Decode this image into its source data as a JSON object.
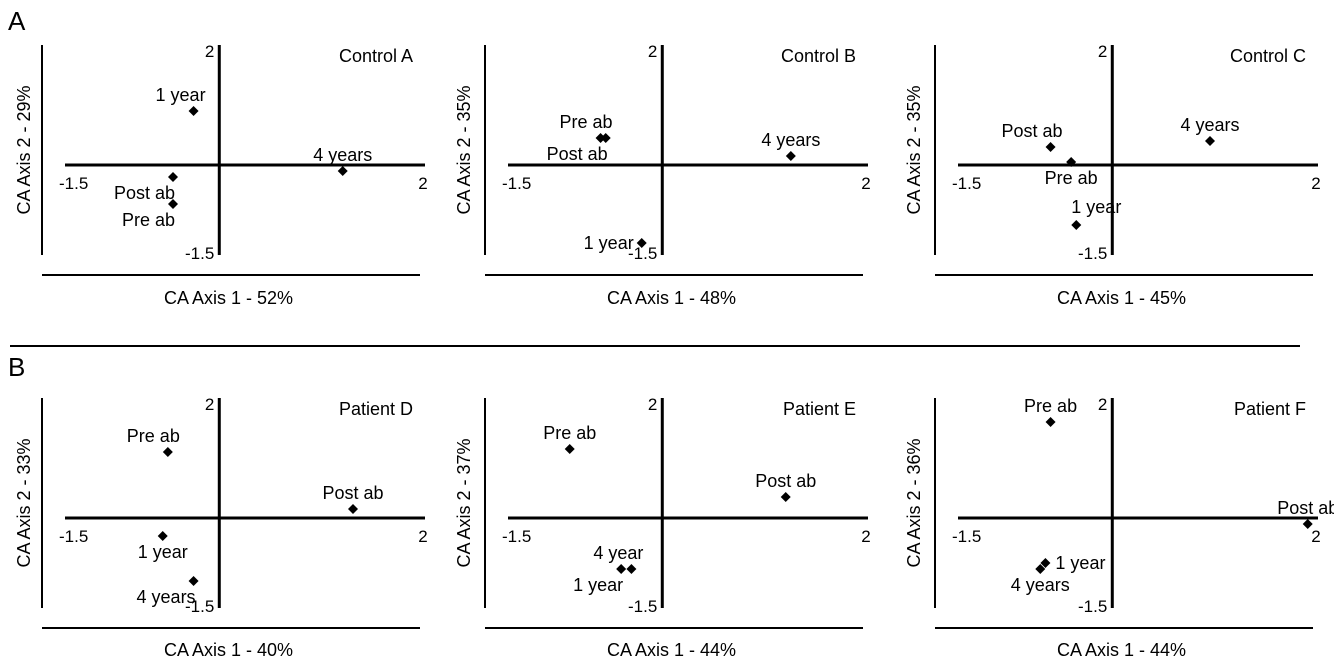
{
  "panels": [
    {
      "letter": "A"
    },
    {
      "letter": "B"
    }
  ],
  "chart_data": [
    {
      "type": "scatter",
      "title": "Control A",
      "xlabel": "CA Axis 1 - 52%",
      "ylabel": "CA Axis 2 - 29%",
      "xlim": [
        -1.5,
        2
      ],
      "ylim": [
        -1.5,
        2
      ],
      "xtick_labels": [
        "-1.5",
        "2"
      ],
      "ytick_labels": [
        "2",
        "-1.5"
      ],
      "points": [
        {
          "label": "1 year",
          "x": -0.25,
          "y": 0.9,
          "label_pos": "above-left"
        },
        {
          "label": "4 years",
          "x": 1.2,
          "y": -0.1,
          "label_pos": "above"
        },
        {
          "label": "Post ab",
          "x": -0.45,
          "y": -0.2,
          "label_pos": "below-left"
        },
        {
          "label": "Pre ab",
          "x": -0.45,
          "y": -0.65,
          "label_pos": "below-left"
        }
      ]
    },
    {
      "type": "scatter",
      "title": "Control B",
      "xlabel": "CA Axis 1 - 48%",
      "ylabel": "CA Axis 2 - 35%",
      "xlim": [
        -1.5,
        2
      ],
      "ylim": [
        -1.5,
        2
      ],
      "xtick_labels": [
        "-1.5",
        "2"
      ],
      "ytick_labels": [
        "2",
        "-1.5"
      ],
      "points": [
        {
          "label": "Pre ab",
          "x": -0.6,
          "y": 0.45,
          "label_pos": "above-left"
        },
        {
          "label": "Post ab",
          "x": -0.55,
          "y": 0.45,
          "label_pos": "below-left"
        },
        {
          "label": "4 years",
          "x": 1.25,
          "y": 0.15,
          "label_pos": "above"
        },
        {
          "label": "1 year",
          "x": -0.2,
          "y": -1.3,
          "label_pos": "left"
        }
      ]
    },
    {
      "type": "scatter",
      "title": "Control C",
      "xlabel": "CA Axis 1 - 45%",
      "ylabel": "CA Axis 2 - 35%",
      "xlim": [
        -1.5,
        2
      ],
      "ylim": [
        -1.5,
        2
      ],
      "xtick_labels": [
        "-1.5",
        "2"
      ],
      "ytick_labels": [
        "2",
        "-1.5"
      ],
      "points": [
        {
          "label": "Post ab",
          "x": -0.6,
          "y": 0.3,
          "label_pos": "above-left"
        },
        {
          "label": "Pre ab",
          "x": -0.4,
          "y": 0.05,
          "label_pos": "below"
        },
        {
          "label": "4 years",
          "x": 0.95,
          "y": 0.4,
          "label_pos": "above"
        },
        {
          "label": "1 year",
          "x": -0.35,
          "y": -1.0,
          "label_pos": "above-right"
        }
      ]
    },
    {
      "type": "scatter",
      "title": "Patient D",
      "xlabel": "CA Axis 1 - 40%",
      "ylabel": "CA Axis 2 - 33%",
      "xlim": [
        -1.5,
        2
      ],
      "ylim": [
        -1.5,
        2
      ],
      "xtick_labels": [
        "-1.5",
        "2"
      ],
      "ytick_labels": [
        "2",
        "-1.5"
      ],
      "points": [
        {
          "label": "Pre ab",
          "x": -0.5,
          "y": 1.1,
          "label_pos": "above-left"
        },
        {
          "label": "Post ab",
          "x": 1.3,
          "y": 0.15,
          "label_pos": "above"
        },
        {
          "label": "1 year",
          "x": -0.55,
          "y": -0.3,
          "label_pos": "below"
        },
        {
          "label": "4 years",
          "x": -0.25,
          "y": -1.05,
          "label_pos": "below-left"
        }
      ]
    },
    {
      "type": "scatter",
      "title": "Patient E",
      "xlabel": "CA Axis 1 - 44%",
      "ylabel": "CA Axis 2 - 37%",
      "xlim": [
        -1.5,
        2
      ],
      "ylim": [
        -1.5,
        2
      ],
      "xtick_labels": [
        "-1.5",
        "2"
      ],
      "ytick_labels": [
        "2",
        "-1.5"
      ],
      "points": [
        {
          "label": "Pre ab",
          "x": -0.9,
          "y": 1.15,
          "label_pos": "above"
        },
        {
          "label": "Post ab",
          "x": 1.2,
          "y": 0.35,
          "label_pos": "above"
        },
        {
          "label": "4 year",
          "x": -0.3,
          "y": -0.85,
          "label_pos": "above-left"
        },
        {
          "label": "1 year",
          "x": -0.4,
          "y": -0.85,
          "label_pos": "below-left"
        }
      ]
    },
    {
      "type": "scatter",
      "title": "Patient F",
      "xlabel": "CA Axis 1 - 44%",
      "ylabel": "CA Axis 2 - 36%",
      "xlim": [
        -1.5,
        2
      ],
      "ylim": [
        -1.5,
        2
      ],
      "xtick_labels": [
        "-1.5",
        "2"
      ],
      "ytick_labels": [
        "2",
        "-1.5"
      ],
      "points": [
        {
          "label": "Pre ab",
          "x": -0.6,
          "y": 1.6,
          "label_pos": "above"
        },
        {
          "label": "Post ab",
          "x": 1.9,
          "y": -0.1,
          "label_pos": "above"
        },
        {
          "label": "1 year",
          "x": -0.65,
          "y": -0.75,
          "label_pos": "right"
        },
        {
          "label": "4 years",
          "x": -0.7,
          "y": -0.85,
          "label_pos": "below"
        }
      ]
    }
  ]
}
